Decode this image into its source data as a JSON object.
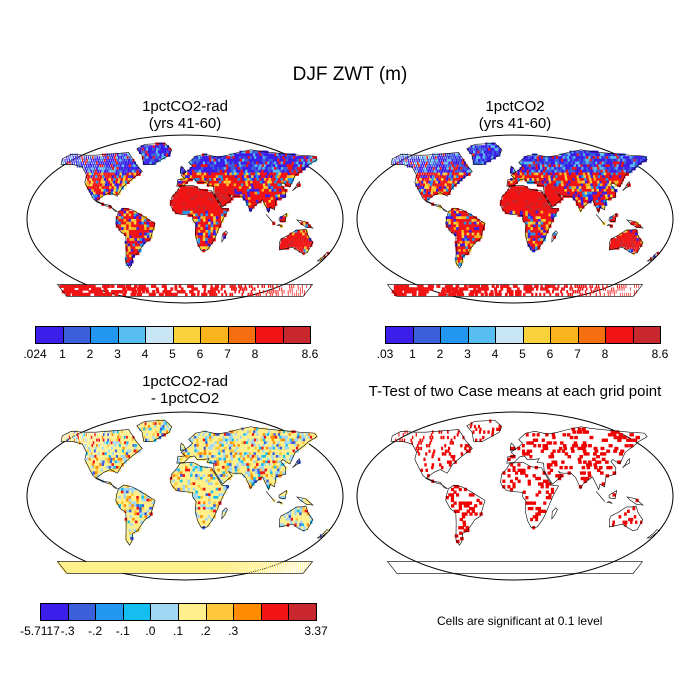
{
  "title": "DJF ZWT (m)",
  "panels": [
    {
      "title_line1": "1pctCO2-rad",
      "title_line2": "(yrs 41-60)",
      "style": "abs"
    },
    {
      "title_line1": "1pctCO2",
      "title_line2": "(yrs 41-60)",
      "style": "abs"
    },
    {
      "title_line1": "1pctCO2-rad",
      "title_line2": "- 1pctCO2",
      "style": "diff"
    },
    {
      "title_line1": "T-Test of two Case means at each grid point",
      "title_line2": "",
      "style": "sig"
    }
  ],
  "colorbars": [
    {
      "colors": [
        "#3c1eeb",
        "#3c5fdc",
        "#2396f0",
        "#58bdf0",
        "#c8e6f5",
        "#fad23c",
        "#fab41e",
        "#f56e0f",
        "#f01414",
        "#c8282d"
      ],
      "labels": [
        ".024",
        "1",
        "2",
        "3",
        "4",
        "5",
        "6",
        "7",
        "8",
        "8.6"
      ]
    },
    {
      "colors": [
        "#3c1eeb",
        "#3c5fdc",
        "#2396f0",
        "#58bdf0",
        "#c8e6f5",
        "#fad23c",
        "#fab41e",
        "#f56e0f",
        "#f01414",
        "#c8282d"
      ],
      "labels": [
        ".03",
        "1",
        "2",
        "3",
        "4",
        "5",
        "6",
        "7",
        "8",
        "8.6"
      ]
    },
    {
      "colors": [
        "#3c1eeb",
        "#3c5fdc",
        "#2396f0",
        "#14bef0",
        "#a0d7f5",
        "#fff08c",
        "#ffc83c",
        "#ff8c00",
        "#f01414",
        "#c8282d"
      ],
      "labels": [
        "-5.7117",
        "-.3",
        "-.2",
        "-.1",
        ".0",
        ".1",
        ".2",
        ".3",
        "3.37"
      ]
    }
  ],
  "note": "Cells are significant at 0.1 level"
}
